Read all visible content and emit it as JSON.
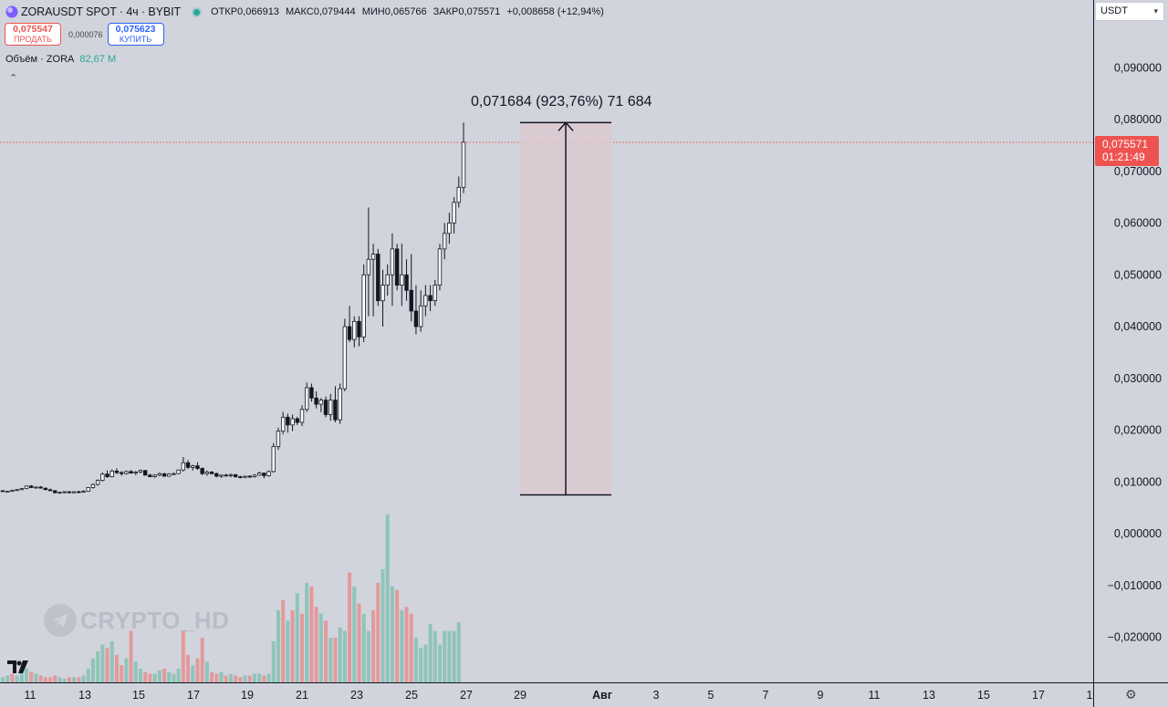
{
  "header": {
    "symbol": "ZORAUSDT SPOT · 4ч · BYBIT",
    "ohlc": [
      {
        "key": "ОТКР",
        "value": "0,066913"
      },
      {
        "key": "МАКС",
        "value": "0,079444"
      },
      {
        "key": "МИН",
        "value": "0,065766"
      },
      {
        "key": "ЗАКР",
        "value": "0,075571"
      }
    ],
    "change": "+0,008658 (+12,94%)"
  },
  "trade": {
    "sell_price": "0,075547",
    "sell_label": "ПРОДАТЬ",
    "spread": "0,000076",
    "buy_price": "0,075623",
    "buy_label": "КУПИТЬ"
  },
  "volume_indicator": {
    "label": "Объём · ZORA",
    "value": "82,67 M"
  },
  "currency_select": "USDT",
  "last_price": {
    "price": "0,075571",
    "countdown": "01:21:49"
  },
  "measure": {
    "text": "0,071684 (923,76%) 71 684"
  },
  "watermark": "CRYPTO_HD",
  "icons": [
    "telegram-icon",
    "tradingview-logo-icon",
    "settings-gear-icon",
    "chevron-up-icon",
    "chevron-down-icon",
    "symbol-logo-icon"
  ],
  "colors": {
    "up": "#26a69a",
    "down": "#ef5350",
    "measure_fill": "#dcc8d0",
    "background": "#d1d4dc"
  },
  "chart_data": {
    "type": "candlestick",
    "y_axis_ticks": [
      "0,090000",
      "0,080000",
      "0,070000",
      "0,060000",
      "0,050000",
      "0,040000",
      "0,030000",
      "0,020000",
      "0,010000",
      "0,000000",
      "−0,010000",
      "−0,020000"
    ],
    "x_axis_ticks": [
      "11",
      "13",
      "15",
      "17",
      "19",
      "21",
      "23",
      "25",
      "27",
      "29",
      "Авг",
      "3",
      "5",
      "7",
      "9",
      "11",
      "13",
      "15",
      "17",
      "1"
    ],
    "ylim": [
      -0.0275,
      0.0985
    ],
    "last_close": 0.075571,
    "ohlc_start": "11",
    "ohlc": [
      [
        0.0083,
        0.0084,
        0.0081,
        0.0082
      ],
      [
        0.0082,
        0.0083,
        0.0081,
        0.0082
      ],
      [
        0.0082,
        0.0085,
        0.0081,
        0.0084
      ],
      [
        0.0084,
        0.0086,
        0.0083,
        0.0085
      ],
      [
        0.0085,
        0.0088,
        0.0084,
        0.0087
      ],
      [
        0.0087,
        0.0093,
        0.0086,
        0.0092
      ],
      [
        0.0092,
        0.0094,
        0.0088,
        0.0089
      ],
      [
        0.0089,
        0.0091,
        0.0087,
        0.009
      ],
      [
        0.009,
        0.0092,
        0.0087,
        0.0088
      ],
      [
        0.0088,
        0.0089,
        0.0084,
        0.0085
      ],
      [
        0.0085,
        0.0087,
        0.0082,
        0.0083
      ],
      [
        0.0083,
        0.0084,
        0.0078,
        0.0079
      ],
      [
        0.0079,
        0.0081,
        0.0077,
        0.008
      ],
      [
        0.008,
        0.0082,
        0.0078,
        0.0081
      ],
      [
        0.0081,
        0.0082,
        0.0078,
        0.0079
      ],
      [
        0.0079,
        0.0082,
        0.0078,
        0.0081
      ],
      [
        0.0081,
        0.0083,
        0.0079,
        0.008
      ],
      [
        0.008,
        0.0084,
        0.0079,
        0.0082
      ],
      [
        0.0082,
        0.009,
        0.0081,
        0.0089
      ],
      [
        0.0089,
        0.0097,
        0.0087,
        0.0095
      ],
      [
        0.0095,
        0.0105,
        0.0093,
        0.0103
      ],
      [
        0.0103,
        0.0118,
        0.0101,
        0.0115
      ],
      [
        0.0115,
        0.0122,
        0.0108,
        0.011
      ],
      [
        0.011,
        0.0124,
        0.0109,
        0.0121
      ],
      [
        0.0121,
        0.0126,
        0.0115,
        0.0118
      ],
      [
        0.0118,
        0.0121,
        0.0112,
        0.0116
      ],
      [
        0.0116,
        0.0122,
        0.0114,
        0.012
      ],
      [
        0.012,
        0.0123,
        0.0116,
        0.0117
      ],
      [
        0.0117,
        0.0121,
        0.0113,
        0.0119
      ],
      [
        0.0119,
        0.0124,
        0.0117,
        0.0122
      ],
      [
        0.0122,
        0.0123,
        0.0112,
        0.0113
      ],
      [
        0.0113,
        0.0116,
        0.0109,
        0.011
      ],
      [
        0.011,
        0.0115,
        0.0108,
        0.0113
      ],
      [
        0.0113,
        0.0118,
        0.0111,
        0.0116
      ],
      [
        0.0116,
        0.0117,
        0.011,
        0.0111
      ],
      [
        0.0111,
        0.0117,
        0.011,
        0.0115
      ],
      [
        0.0115,
        0.0118,
        0.0113,
        0.0116
      ],
      [
        0.0116,
        0.0124,
        0.0115,
        0.0123
      ],
      [
        0.0123,
        0.0148,
        0.012,
        0.0137
      ],
      [
        0.0137,
        0.0142,
        0.0125,
        0.0128
      ],
      [
        0.0128,
        0.0133,
        0.0122,
        0.0131
      ],
      [
        0.0131,
        0.0138,
        0.0123,
        0.0126
      ],
      [
        0.0126,
        0.0128,
        0.0113,
        0.0116
      ],
      [
        0.0116,
        0.0122,
        0.0112,
        0.0119
      ],
      [
        0.0119,
        0.0121,
        0.0114,
        0.0116
      ],
      [
        0.0116,
        0.0118,
        0.0109,
        0.0111
      ],
      [
        0.0111,
        0.0114,
        0.0108,
        0.0113
      ],
      [
        0.0113,
        0.0116,
        0.0111,
        0.0112
      ],
      [
        0.0112,
        0.0116,
        0.0109,
        0.0114
      ],
      [
        0.0114,
        0.0115,
        0.0108,
        0.011
      ],
      [
        0.011,
        0.0112,
        0.0107,
        0.0109
      ],
      [
        0.0109,
        0.0112,
        0.0107,
        0.0111
      ],
      [
        0.0111,
        0.0113,
        0.0108,
        0.011
      ],
      [
        0.011,
        0.0115,
        0.0108,
        0.0113
      ],
      [
        0.0113,
        0.012,
        0.0112,
        0.0117
      ],
      [
        0.0117,
        0.0118,
        0.0107,
        0.0112
      ],
      [
        0.0112,
        0.0122,
        0.011,
        0.012
      ],
      [
        0.012,
        0.0175,
        0.0118,
        0.0168
      ],
      [
        0.0168,
        0.0205,
        0.0162,
        0.0198
      ],
      [
        0.0198,
        0.0235,
        0.0192,
        0.0225
      ],
      [
        0.0225,
        0.0232,
        0.0195,
        0.021
      ],
      [
        0.021,
        0.023,
        0.0198,
        0.0222
      ],
      [
        0.0222,
        0.0226,
        0.021,
        0.0215
      ],
      [
        0.0215,
        0.0248,
        0.0208,
        0.024
      ],
      [
        0.024,
        0.0292,
        0.0235,
        0.0282
      ],
      [
        0.0282,
        0.029,
        0.0255,
        0.0262
      ],
      [
        0.0262,
        0.0275,
        0.0242,
        0.025
      ],
      [
        0.025,
        0.0262,
        0.0235,
        0.0258
      ],
      [
        0.0258,
        0.0265,
        0.0225,
        0.023
      ],
      [
        0.023,
        0.027,
        0.0218,
        0.0258
      ],
      [
        0.0258,
        0.0285,
        0.0215,
        0.022
      ],
      [
        0.022,
        0.029,
        0.0212,
        0.028
      ],
      [
        0.028,
        0.0415,
        0.0275,
        0.04
      ],
      [
        0.04,
        0.044,
        0.037,
        0.0375
      ],
      [
        0.0375,
        0.042,
        0.036,
        0.041
      ],
      [
        0.041,
        0.042,
        0.0362,
        0.038
      ],
      [
        0.038,
        0.052,
        0.037,
        0.05
      ],
      [
        0.05,
        0.063,
        0.042,
        0.053
      ],
      [
        0.053,
        0.056,
        0.042,
        0.054
      ],
      [
        0.054,
        0.055,
        0.044,
        0.045
      ],
      [
        0.045,
        0.051,
        0.04,
        0.048
      ],
      [
        0.048,
        0.052,
        0.046,
        0.05
      ],
      [
        0.05,
        0.058,
        0.044,
        0.055
      ],
      [
        0.055,
        0.056,
        0.047,
        0.048
      ],
      [
        0.048,
        0.056,
        0.044,
        0.05
      ],
      [
        0.05,
        0.053,
        0.045,
        0.047
      ],
      [
        0.047,
        0.054,
        0.041,
        0.043
      ],
      [
        0.043,
        0.048,
        0.0385,
        0.04
      ],
      [
        0.04,
        0.047,
        0.039,
        0.044
      ],
      [
        0.044,
        0.048,
        0.042,
        0.046
      ],
      [
        0.046,
        0.048,
        0.043,
        0.045
      ],
      [
        0.045,
        0.049,
        0.044,
        0.048
      ],
      [
        0.048,
        0.056,
        0.047,
        0.055
      ],
      [
        0.055,
        0.06,
        0.053,
        0.058
      ],
      [
        0.058,
        0.062,
        0.056,
        0.06
      ],
      [
        0.06,
        0.065,
        0.058,
        0.064
      ],
      [
        0.064,
        0.069,
        0.063,
        0.0669
      ],
      [
        0.0669,
        0.0794,
        0.0658,
        0.0756
      ]
    ],
    "volume_colors": [
      "g",
      "g",
      "r",
      "g",
      "g",
      "g",
      "r",
      "g",
      "r",
      "r",
      "r",
      "r",
      "g",
      "g",
      "r",
      "g",
      "r",
      "g",
      "g",
      "g",
      "g",
      "g",
      "r",
      "g",
      "r",
      "r",
      "g",
      "r",
      "g",
      "g",
      "r",
      "r",
      "g",
      "g",
      "r",
      "g",
      "g",
      "g",
      "r",
      "r",
      "g",
      "r",
      "r",
      "g",
      "r",
      "r",
      "g",
      "r",
      "g",
      "r",
      "r",
      "g",
      "r",
      "g",
      "g",
      "r",
      "g",
      "g",
      "g",
      "r",
      "g",
      "r",
      "g",
      "r",
      "g",
      "r",
      "r",
      "g",
      "r",
      "g",
      "r",
      "g",
      "g",
      "r",
      "g",
      "r",
      "g",
      "g",
      "r",
      "r",
      "g",
      "g",
      "g",
      "r",
      "g",
      "r",
      "r",
      "g",
      "g",
      "g",
      "g",
      "g",
      "g",
      "g",
      "g",
      "g",
      "g"
    ],
    "volume_scale_max": 1.0,
    "volumes": [
      0.03,
      0.04,
      0.05,
      0.04,
      0.06,
      0.08,
      0.06,
      0.05,
      0.04,
      0.03,
      0.03,
      0.04,
      0.03,
      0.02,
      0.03,
      0.03,
      0.03,
      0.04,
      0.08,
      0.14,
      0.18,
      0.22,
      0.2,
      0.24,
      0.16,
      0.1,
      0.14,
      0.3,
      0.12,
      0.08,
      0.06,
      0.05,
      0.05,
      0.07,
      0.08,
      0.06,
      0.05,
      0.08,
      0.3,
      0.16,
      0.1,
      0.14,
      0.26,
      0.12,
      0.06,
      0.05,
      0.06,
      0.04,
      0.05,
      0.04,
      0.03,
      0.04,
      0.04,
      0.05,
      0.05,
      0.04,
      0.05,
      0.24,
      0.42,
      0.48,
      0.36,
      0.42,
      0.52,
      0.4,
      0.58,
      0.56,
      0.44,
      0.4,
      0.36,
      0.26,
      0.26,
      0.32,
      0.3,
      0.64,
      0.56,
      0.46,
      0.4,
      0.3,
      0.42,
      0.58,
      0.66,
      0.98,
      0.56,
      0.54,
      0.42,
      0.44,
      0.4,
      0.26,
      0.2,
      0.22,
      0.34,
      0.3,
      0.22,
      0.3,
      0.3,
      0.3,
      0.35
    ]
  }
}
